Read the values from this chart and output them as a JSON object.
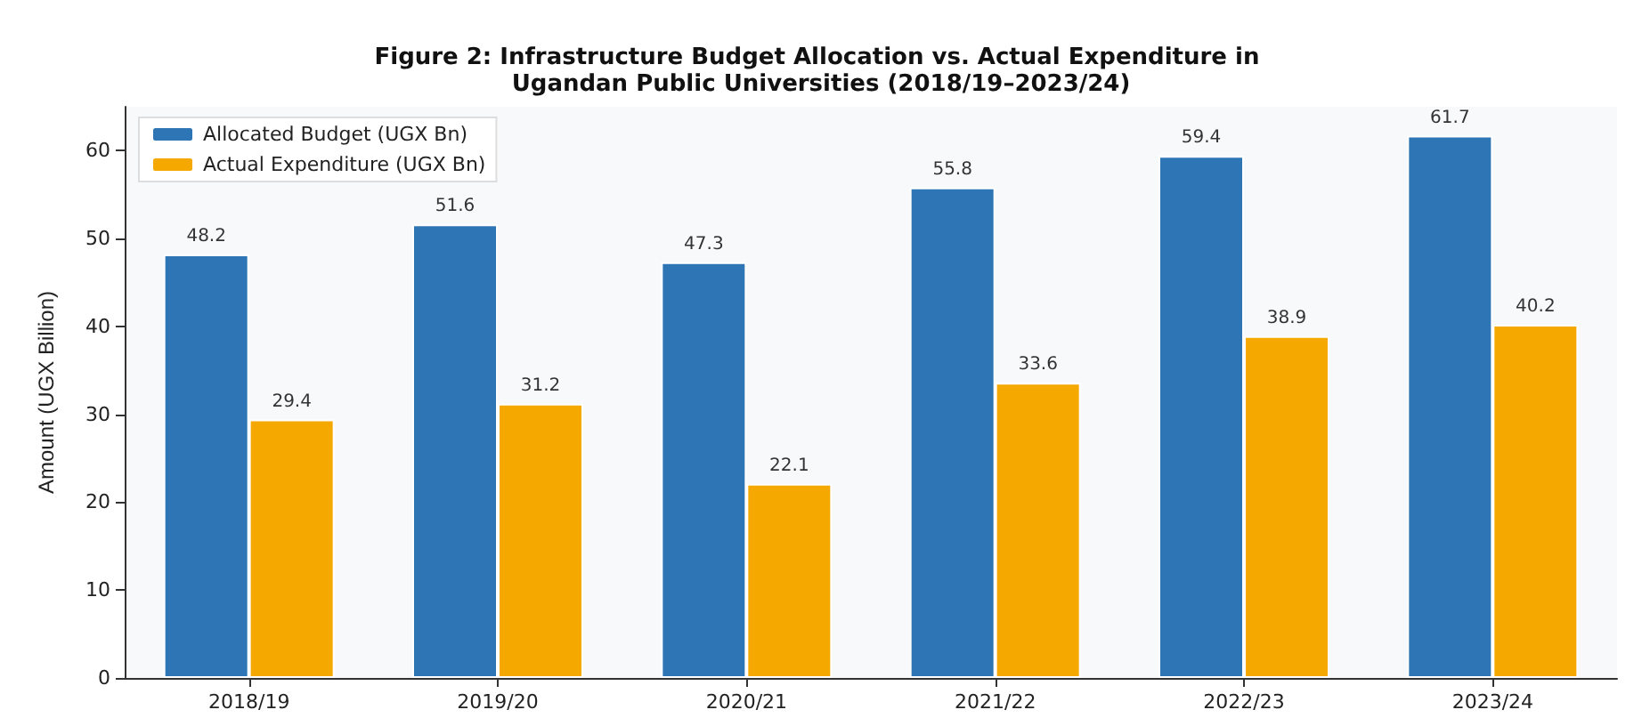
{
  "chart_data": {
    "type": "bar",
    "title": "Figure 2: Infrastructure Budget Allocation vs. Actual Expenditure in Ugandan Public Universities (2018/19–2023/24)",
    "ylabel": "Amount (UGX Billion)",
    "categories": [
      "2018/19",
      "2019/20",
      "2020/21",
      "2021/22",
      "2022/23",
      "2023/24"
    ],
    "series": [
      {
        "name": "Allocated Budget (UGX Bn)",
        "color": "#2e75b6",
        "values": [
          48.2,
          51.6,
          47.3,
          55.8,
          59.4,
          61.7
        ]
      },
      {
        "name": "Actual Expenditure (UGX Bn)",
        "color": "#f5a800",
        "values": [
          29.4,
          31.2,
          22.1,
          33.6,
          38.9,
          40.2
        ]
      }
    ],
    "ylim": [
      0,
      65
    ],
    "yticks": [
      0,
      10,
      20,
      30,
      40,
      50,
      60
    ],
    "legend": "top left",
    "data_labels": true
  }
}
